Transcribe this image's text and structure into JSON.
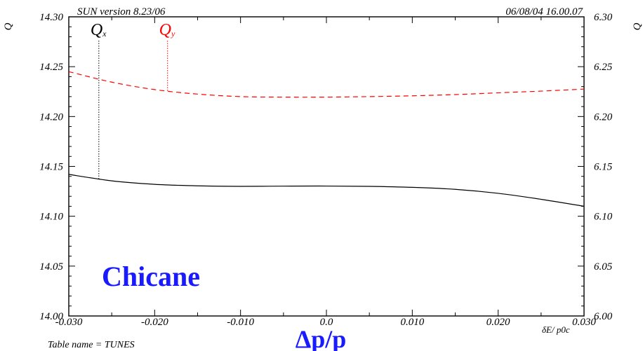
{
  "header": {
    "version": "SUN version 8.23/06",
    "datetime": "06/08/04  16.00.07"
  },
  "footer": {
    "table_name": "Table name = TUNES"
  },
  "chart_data": {
    "type": "line",
    "title": "",
    "xlabel": "Δp/p",
    "xlabel_alt": "δE/ p0c",
    "ylabel_left": "Q",
    "ylabel_right": "Q",
    "annotation": "Chicane",
    "xlim": [
      -0.03,
      0.03
    ],
    "ylim_left": [
      14.0,
      14.3
    ],
    "ylim_right": [
      6.0,
      6.3
    ],
    "x_ticks": [
      "-0.030",
      "-0.020",
      "-0.010",
      "0.0",
      "0.010",
      "0.020",
      "0.030"
    ],
    "y_ticks_left": [
      "14.00",
      "14.05",
      "14.10",
      "14.15",
      "14.20",
      "14.25",
      "14.30"
    ],
    "y_ticks_right": [
      "6.00",
      "6.05",
      "6.10",
      "6.15",
      "6.20",
      "6.25",
      "6.30"
    ],
    "series": [
      {
        "name": "Qx",
        "axis": "left",
        "color": "#000000",
        "dash": "solid",
        "label_x": -0.0265,
        "x": [
          -0.03,
          -0.025,
          -0.02,
          -0.015,
          -0.01,
          -0.005,
          0.0,
          0.005,
          0.01,
          0.015,
          0.02,
          0.025,
          0.03
        ],
        "y": [
          14.142,
          14.1355,
          14.132,
          14.1305,
          14.13,
          14.1302,
          14.1303,
          14.13,
          14.129,
          14.127,
          14.123,
          14.117,
          14.11
        ]
      },
      {
        "name": "Qy",
        "axis": "right",
        "color": "#ff0000",
        "dash": "dashed",
        "label_x": -0.0185,
        "x": [
          -0.03,
          -0.025,
          -0.02,
          -0.015,
          -0.01,
          -0.005,
          0.0,
          0.005,
          0.01,
          0.015,
          0.02,
          0.025,
          0.03
        ],
        "y": [
          6.245,
          6.2345,
          6.227,
          6.2225,
          6.22,
          6.2195,
          6.2195,
          6.22,
          6.2208,
          6.222,
          6.2238,
          6.2255,
          6.2275
        ]
      }
    ]
  }
}
